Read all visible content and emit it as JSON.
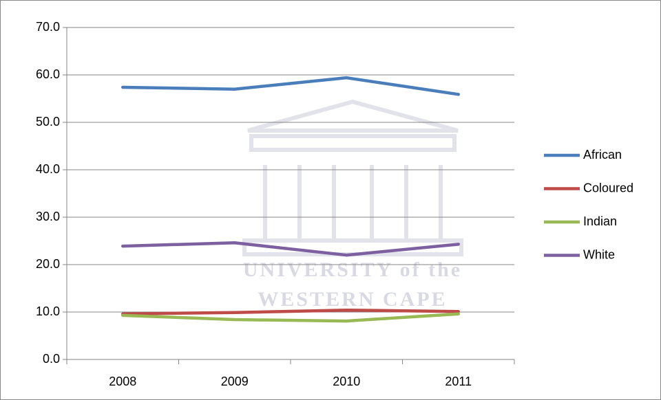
{
  "chart_data": {
    "type": "line",
    "categories": [
      "2008",
      "2009",
      "2010",
      "2011"
    ],
    "series": [
      {
        "name": "African",
        "color": "#4a7ebb",
        "values": [
          57.4,
          57.0,
          59.4,
          55.9
        ]
      },
      {
        "name": "Coloured",
        "color": "#be4b48",
        "values": [
          9.6,
          9.9,
          10.4,
          10.1
        ]
      },
      {
        "name": "Indian",
        "color": "#98b954",
        "values": [
          9.3,
          8.4,
          8.1,
          9.6
        ]
      },
      {
        "name": "White",
        "color": "#7d60a0",
        "values": [
          23.9,
          24.6,
          22.0,
          24.3
        ]
      }
    ],
    "ylim": [
      0,
      70
    ],
    "yticks": [
      {
        "value": 0,
        "label": "0.0"
      },
      {
        "value": 10,
        "label": "10.0"
      },
      {
        "value": 20,
        "label": "20.0"
      },
      {
        "value": 30,
        "label": "30.0"
      },
      {
        "value": 40,
        "label": "40.0"
      },
      {
        "value": 50,
        "label": "50.0"
      },
      {
        "value": 60,
        "label": "60.0"
      },
      {
        "value": 70,
        "label": "70.0"
      }
    ],
    "grid": true,
    "legend": "right"
  },
  "watermark": [
    "UNIVERSITY of the",
    "WESTERN CAPE"
  ]
}
